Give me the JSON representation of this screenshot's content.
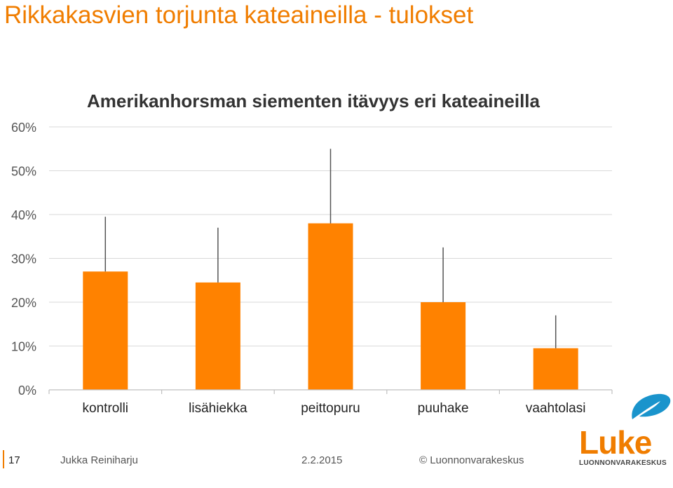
{
  "slide": {
    "title": "Rikkakasvien torjunta kateaineilla - tulokset",
    "number": "17",
    "author": "Jukka Reiniharju",
    "date": "2.2.2015",
    "copyright": "© Luonnonvarakeskus",
    "logo": {
      "name": "Luke",
      "subtitle": "LUONNONVARAKESKUS",
      "icon": "leaf-swoosh-icon"
    }
  },
  "colors": {
    "accent": "#f07d00",
    "bar": "#ff8200",
    "logo_blue": "#1a94cc"
  },
  "chart_data": {
    "type": "bar",
    "title": "Amerikanhorsman siementen itävyys eri kateaineilla",
    "categories": [
      "kontrolli",
      "lisähiekka",
      "peittopuru",
      "puuhake",
      "vaahtolasi"
    ],
    "values": [
      27,
      24.5,
      38,
      20,
      9.5
    ],
    "error_upper": [
      39.5,
      37,
      55,
      32.5,
      17
    ],
    "ylim": [
      0,
      60
    ],
    "yticks": [
      "0%",
      "10%",
      "20%",
      "30%",
      "40%",
      "50%",
      "60%"
    ],
    "grid": true,
    "legend": "none"
  }
}
